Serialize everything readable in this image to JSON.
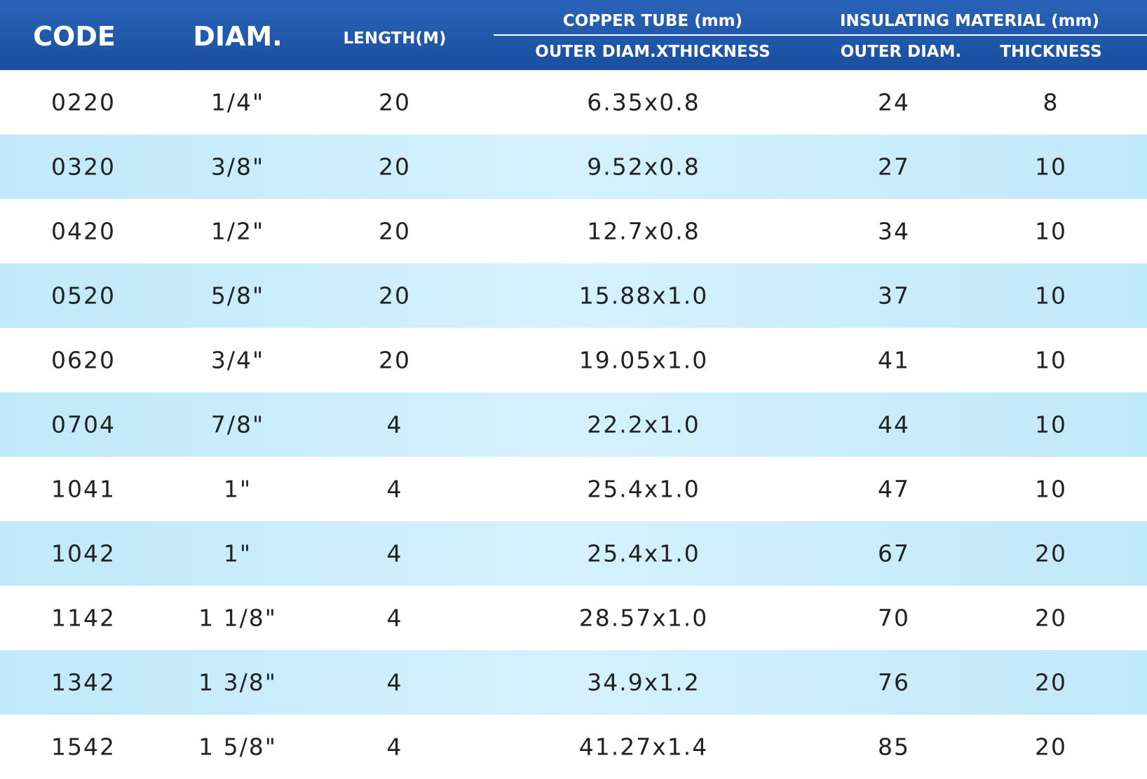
{
  "header": {
    "code": "CODE",
    "diam": "DIAM.",
    "length": "LENGTH(M)",
    "copper_tube": "COPPER TUBE (mm)",
    "outer_diam_x_thickness": "OUTER DIAM.XTHICKNESS",
    "insulating_material": "INSULATING MATERIAL (mm)",
    "outer_diam": "OUTER DIAM.",
    "thickness": "THICKNESS"
  },
  "table": {
    "rows": [
      [
        "0220",
        "1/4\"",
        "20",
        "6.35x0.8",
        "24",
        "8"
      ],
      [
        "0320",
        "3/8\"",
        "20",
        "9.52x0.8",
        "27",
        "10"
      ],
      [
        "0420",
        "1/2\"",
        "20",
        "12.7x0.8",
        "34",
        "10"
      ],
      [
        "0520",
        "5/8\"",
        "20",
        "15.88x1.0",
        "37",
        "10"
      ],
      [
        "0620",
        "3/4\"",
        "20",
        "19.05x1.0",
        "41",
        "10"
      ],
      [
        "0704",
        "7/8\"",
        "4",
        "22.2x1.0",
        "44",
        "10"
      ],
      [
        "1041",
        "1\"",
        "4",
        "25.4x1.0",
        "47",
        "10"
      ],
      [
        "1042",
        "1\"",
        "4",
        "25.4x1.0",
        "67",
        "20"
      ],
      [
        "1142",
        "1 1/8\"",
        "4",
        "28.57x1.0",
        "70",
        "20"
      ],
      [
        "1342",
        "1 3/8\"",
        "4",
        "34.9x1.2",
        "76",
        "20"
      ],
      [
        "1542",
        "1 5/8\"",
        "4",
        "41.27x1.4",
        "85",
        "20"
      ]
    ]
  }
}
